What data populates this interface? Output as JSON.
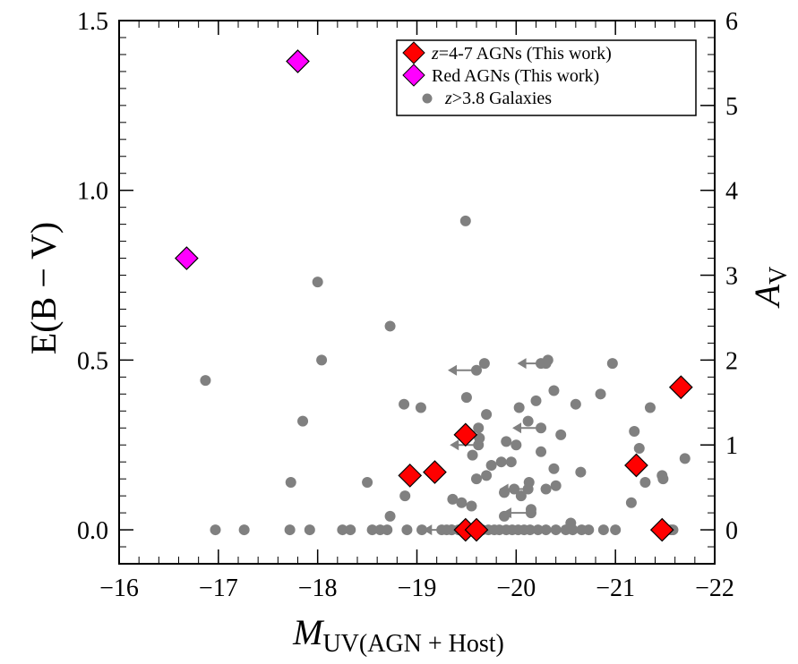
{
  "chart_data": {
    "type": "scatter",
    "xlabel_main": "M",
    "xlabel_sub": "UV(AGN + Host)",
    "ylabel": "E(B − V)",
    "y2label_main": "A",
    "y2label_sub": "V",
    "xlim": [
      -16,
      -22
    ],
    "ylim": [
      -0.1,
      1.5
    ],
    "y2lim": [
      -0.4,
      6
    ],
    "xticks": [
      -16,
      -17,
      -18,
      -19,
      -20,
      -21,
      -22
    ],
    "xtick_labels": [
      "−16",
      "−17",
      "−18",
      "−19",
      "−20",
      "−21",
      "−22"
    ],
    "yticks": [
      0.0,
      0.5,
      1.0,
      1.5
    ],
    "ytick_labels": [
      "0.0",
      "0.5",
      "1.0",
      "1.5"
    ],
    "y2ticks": [
      0,
      1,
      2,
      3,
      4,
      5,
      6
    ],
    "y2tick_labels": [
      "0",
      "1",
      "2",
      "3",
      "4",
      "5",
      "6"
    ],
    "legend": {
      "position": "top-right",
      "entries": [
        {
          "italic": "z",
          "text": "=4-7 AGNs (This work)",
          "marker": "diamond",
          "color": "#ff0000"
        },
        {
          "italic": "",
          "text": "Red AGNs (This work)",
          "marker": "diamond",
          "color": "#ff00ff"
        },
        {
          "italic": "z",
          "text": ">3.8 Galaxies",
          "marker": "circle",
          "color": "#808080"
        }
      ]
    },
    "series": [
      {
        "name": "z=4-7 AGNs (This work)",
        "color": "#ff0000",
        "points": [
          {
            "x": -18.93,
            "y": 0.16
          },
          {
            "x": -19.18,
            "y": 0.17
          },
          {
            "x": -19.49,
            "y": 0.28
          },
          {
            "x": -19.49,
            "y": 0.0
          },
          {
            "x": -19.6,
            "y": 0.0
          },
          {
            "x": -21.21,
            "y": 0.19
          },
          {
            "x": -21.47,
            "y": 0.0
          },
          {
            "x": -21.66,
            "y": 0.42
          }
        ]
      },
      {
        "name": "Red AGNs (This work)",
        "color": "#ff00ff",
        "points": [
          {
            "x": -16.68,
            "y": 0.8
          },
          {
            "x": -17.8,
            "y": 1.38
          }
        ]
      },
      {
        "name": "z>3.8 Galaxies",
        "color": "#808080",
        "points": [
          {
            "x": -16.87,
            "y": 0.44
          },
          {
            "x": -17.73,
            "y": 0.14
          },
          {
            "x": -17.85,
            "y": 0.32
          },
          {
            "x": -18.0,
            "y": 0.73
          },
          {
            "x": -18.04,
            "y": 0.5
          },
          {
            "x": -18.73,
            "y": 0.6
          },
          {
            "x": -18.87,
            "y": 0.37
          },
          {
            "x": -19.04,
            "y": 0.36
          },
          {
            "x": -19.49,
            "y": 0.91
          },
          {
            "x": -19.5,
            "y": 0.39
          },
          {
            "x": -19.68,
            "y": 0.49
          },
          {
            "x": -19.7,
            "y": 0.34
          },
          {
            "x": -19.63,
            "y": 0.27
          },
          {
            "x": -19.9,
            "y": 0.26
          },
          {
            "x": -19.85,
            "y": 0.2
          },
          {
            "x": -19.95,
            "y": 0.2
          },
          {
            "x": -19.75,
            "y": 0.19
          },
          {
            "x": -20.03,
            "y": 0.36
          },
          {
            "x": -20.12,
            "y": 0.32
          },
          {
            "x": -20.2,
            "y": 0.38
          },
          {
            "x": -20.25,
            "y": 0.49
          },
          {
            "x": -20.32,
            "y": 0.5
          },
          {
            "x": -20.38,
            "y": 0.41
          },
          {
            "x": -20.6,
            "y": 0.37
          },
          {
            "x": -20.85,
            "y": 0.4
          },
          {
            "x": -20.97,
            "y": 0.49
          },
          {
            "x": -20.45,
            "y": 0.28
          },
          {
            "x": -20.0,
            "y": 0.25
          },
          {
            "x": -20.25,
            "y": 0.23
          },
          {
            "x": -20.38,
            "y": 0.18
          },
          {
            "x": -20.13,
            "y": 0.14
          },
          {
            "x": -19.98,
            "y": 0.12
          },
          {
            "x": -19.88,
            "y": 0.11
          },
          {
            "x": -20.05,
            "y": 0.1
          },
          {
            "x": -20.3,
            "y": 0.12
          },
          {
            "x": -20.4,
            "y": 0.13
          },
          {
            "x": -20.65,
            "y": 0.17
          },
          {
            "x": -21.19,
            "y": 0.29
          },
          {
            "x": -21.24,
            "y": 0.24
          },
          {
            "x": -21.3,
            "y": 0.14
          },
          {
            "x": -21.35,
            "y": 0.36
          },
          {
            "x": -21.47,
            "y": 0.16
          },
          {
            "x": -21.48,
            "y": 0.15
          },
          {
            "x": -21.7,
            "y": 0.21
          },
          {
            "x": -19.56,
            "y": 0.22
          },
          {
            "x": -19.62,
            "y": 0.3
          },
          {
            "x": -19.6,
            "y": 0.15
          },
          {
            "x": -19.7,
            "y": 0.16
          },
          {
            "x": -19.88,
            "y": 0.04
          },
          {
            "x": -19.55,
            "y": 0.07
          },
          {
            "x": -19.45,
            "y": 0.08
          },
          {
            "x": -19.36,
            "y": 0.09
          },
          {
            "x": -18.88,
            "y": 0.1
          },
          {
            "x": -18.73,
            "y": 0.04
          },
          {
            "x": -18.5,
            "y": 0.14
          },
          {
            "x": -21.16,
            "y": 0.08
          },
          {
            "x": -20.15,
            "y": 0.06
          },
          {
            "x": -20.55,
            "y": 0.02
          },
          {
            "x": -16.97,
            "y": 0.0
          },
          {
            "x": -17.26,
            "y": 0.0
          },
          {
            "x": -17.72,
            "y": 0.0
          },
          {
            "x": -17.92,
            "y": 0.0
          },
          {
            "x": -18.25,
            "y": 0.0
          },
          {
            "x": -18.33,
            "y": 0.0
          },
          {
            "x": -18.55,
            "y": 0.0
          },
          {
            "x": -18.63,
            "y": 0.0
          },
          {
            "x": -18.7,
            "y": 0.0
          },
          {
            "x": -18.9,
            "y": 0.0
          },
          {
            "x": -19.05,
            "y": 0.0
          },
          {
            "x": -19.25,
            "y": 0.0
          },
          {
            "x": -19.3,
            "y": 0.0
          },
          {
            "x": -19.35,
            "y": 0.0
          },
          {
            "x": -19.42,
            "y": 0.0
          },
          {
            "x": -19.55,
            "y": 0.0
          },
          {
            "x": -19.66,
            "y": 0.0
          },
          {
            "x": -19.72,
            "y": 0.0
          },
          {
            "x": -19.78,
            "y": 0.0
          },
          {
            "x": -19.83,
            "y": 0.0
          },
          {
            "x": -19.9,
            "y": 0.0
          },
          {
            "x": -19.96,
            "y": 0.0
          },
          {
            "x": -20.02,
            "y": 0.0
          },
          {
            "x": -20.08,
            "y": 0.0
          },
          {
            "x": -20.14,
            "y": 0.0
          },
          {
            "x": -20.22,
            "y": 0.0
          },
          {
            "x": -20.3,
            "y": 0.0
          },
          {
            "x": -20.4,
            "y": 0.0
          },
          {
            "x": -20.57,
            "y": 0.0
          },
          {
            "x": -20.66,
            "y": 0.0
          },
          {
            "x": -20.73,
            "y": 0.0
          },
          {
            "x": -20.88,
            "y": 0.0
          },
          {
            "x": -21.0,
            "y": 0.0
          },
          {
            "x": -21.56,
            "y": 0.0
          },
          {
            "x": -21.58,
            "y": 0.0
          }
        ],
        "upper_limits": [
          {
            "x": -19.6,
            "y": 0.47
          },
          {
            "x": -20.3,
            "y": 0.49
          },
          {
            "x": -20.25,
            "y": 0.3
          },
          {
            "x": -19.62,
            "y": 0.25
          },
          {
            "x": -20.12,
            "y": 0.12
          },
          {
            "x": -20.15,
            "y": 0.05
          },
          {
            "x": -19.35,
            "y": 0.0
          },
          {
            "x": -20.5,
            "y": 0.0
          }
        ]
      }
    ]
  }
}
